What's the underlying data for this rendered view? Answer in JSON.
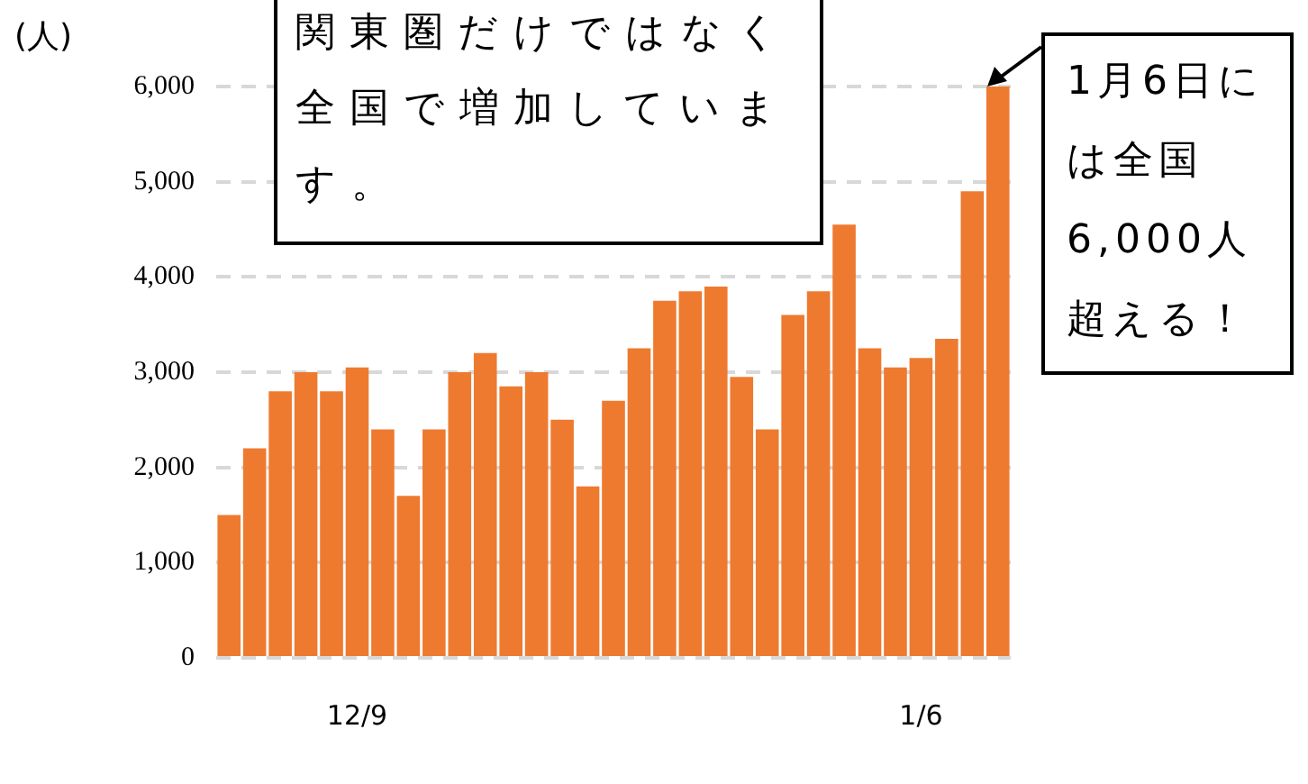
{
  "chart_data": {
    "type": "bar",
    "ylabel": "(人)",
    "categories": [
      null,
      null,
      null,
      null,
      null,
      "12/9",
      null,
      null,
      null,
      null,
      null,
      null,
      null,
      null,
      null,
      null,
      null,
      null,
      null,
      null,
      null,
      null,
      null,
      null,
      null,
      null,
      null,
      "1/6",
      null,
      null,
      null
    ],
    "values": [
      1500,
      2200,
      2800,
      3000,
      2800,
      3050,
      2400,
      1700,
      2400,
      3000,
      3200,
      2850,
      3000,
      2500,
      1800,
      2700,
      3250,
      3750,
      3850,
      3900,
      2950,
      2400,
      3600,
      3850,
      4550,
      3250,
      3050,
      3150,
      3350,
      4900,
      6000
    ],
    "color": "#ee7a30",
    "ylim": [
      0,
      6000
    ],
    "yticks": [
      0,
      {
        "value": 1000,
        "label": "1,000"
      },
      {
        "value": 2000,
        "label": "2,000"
      },
      {
        "value": 3000,
        "label": "3,000"
      },
      {
        "value": 4000,
        "label": "4,000"
      },
      {
        "value": 5000,
        "label": "5,000"
      },
      {
        "value": 6000,
        "label": "6,000"
      }
    ],
    "grid": "y",
    "annotations": [
      "関東圏だけではなく全国で増加しています。",
      "1月6日には全国6,000人超える！"
    ]
  }
}
